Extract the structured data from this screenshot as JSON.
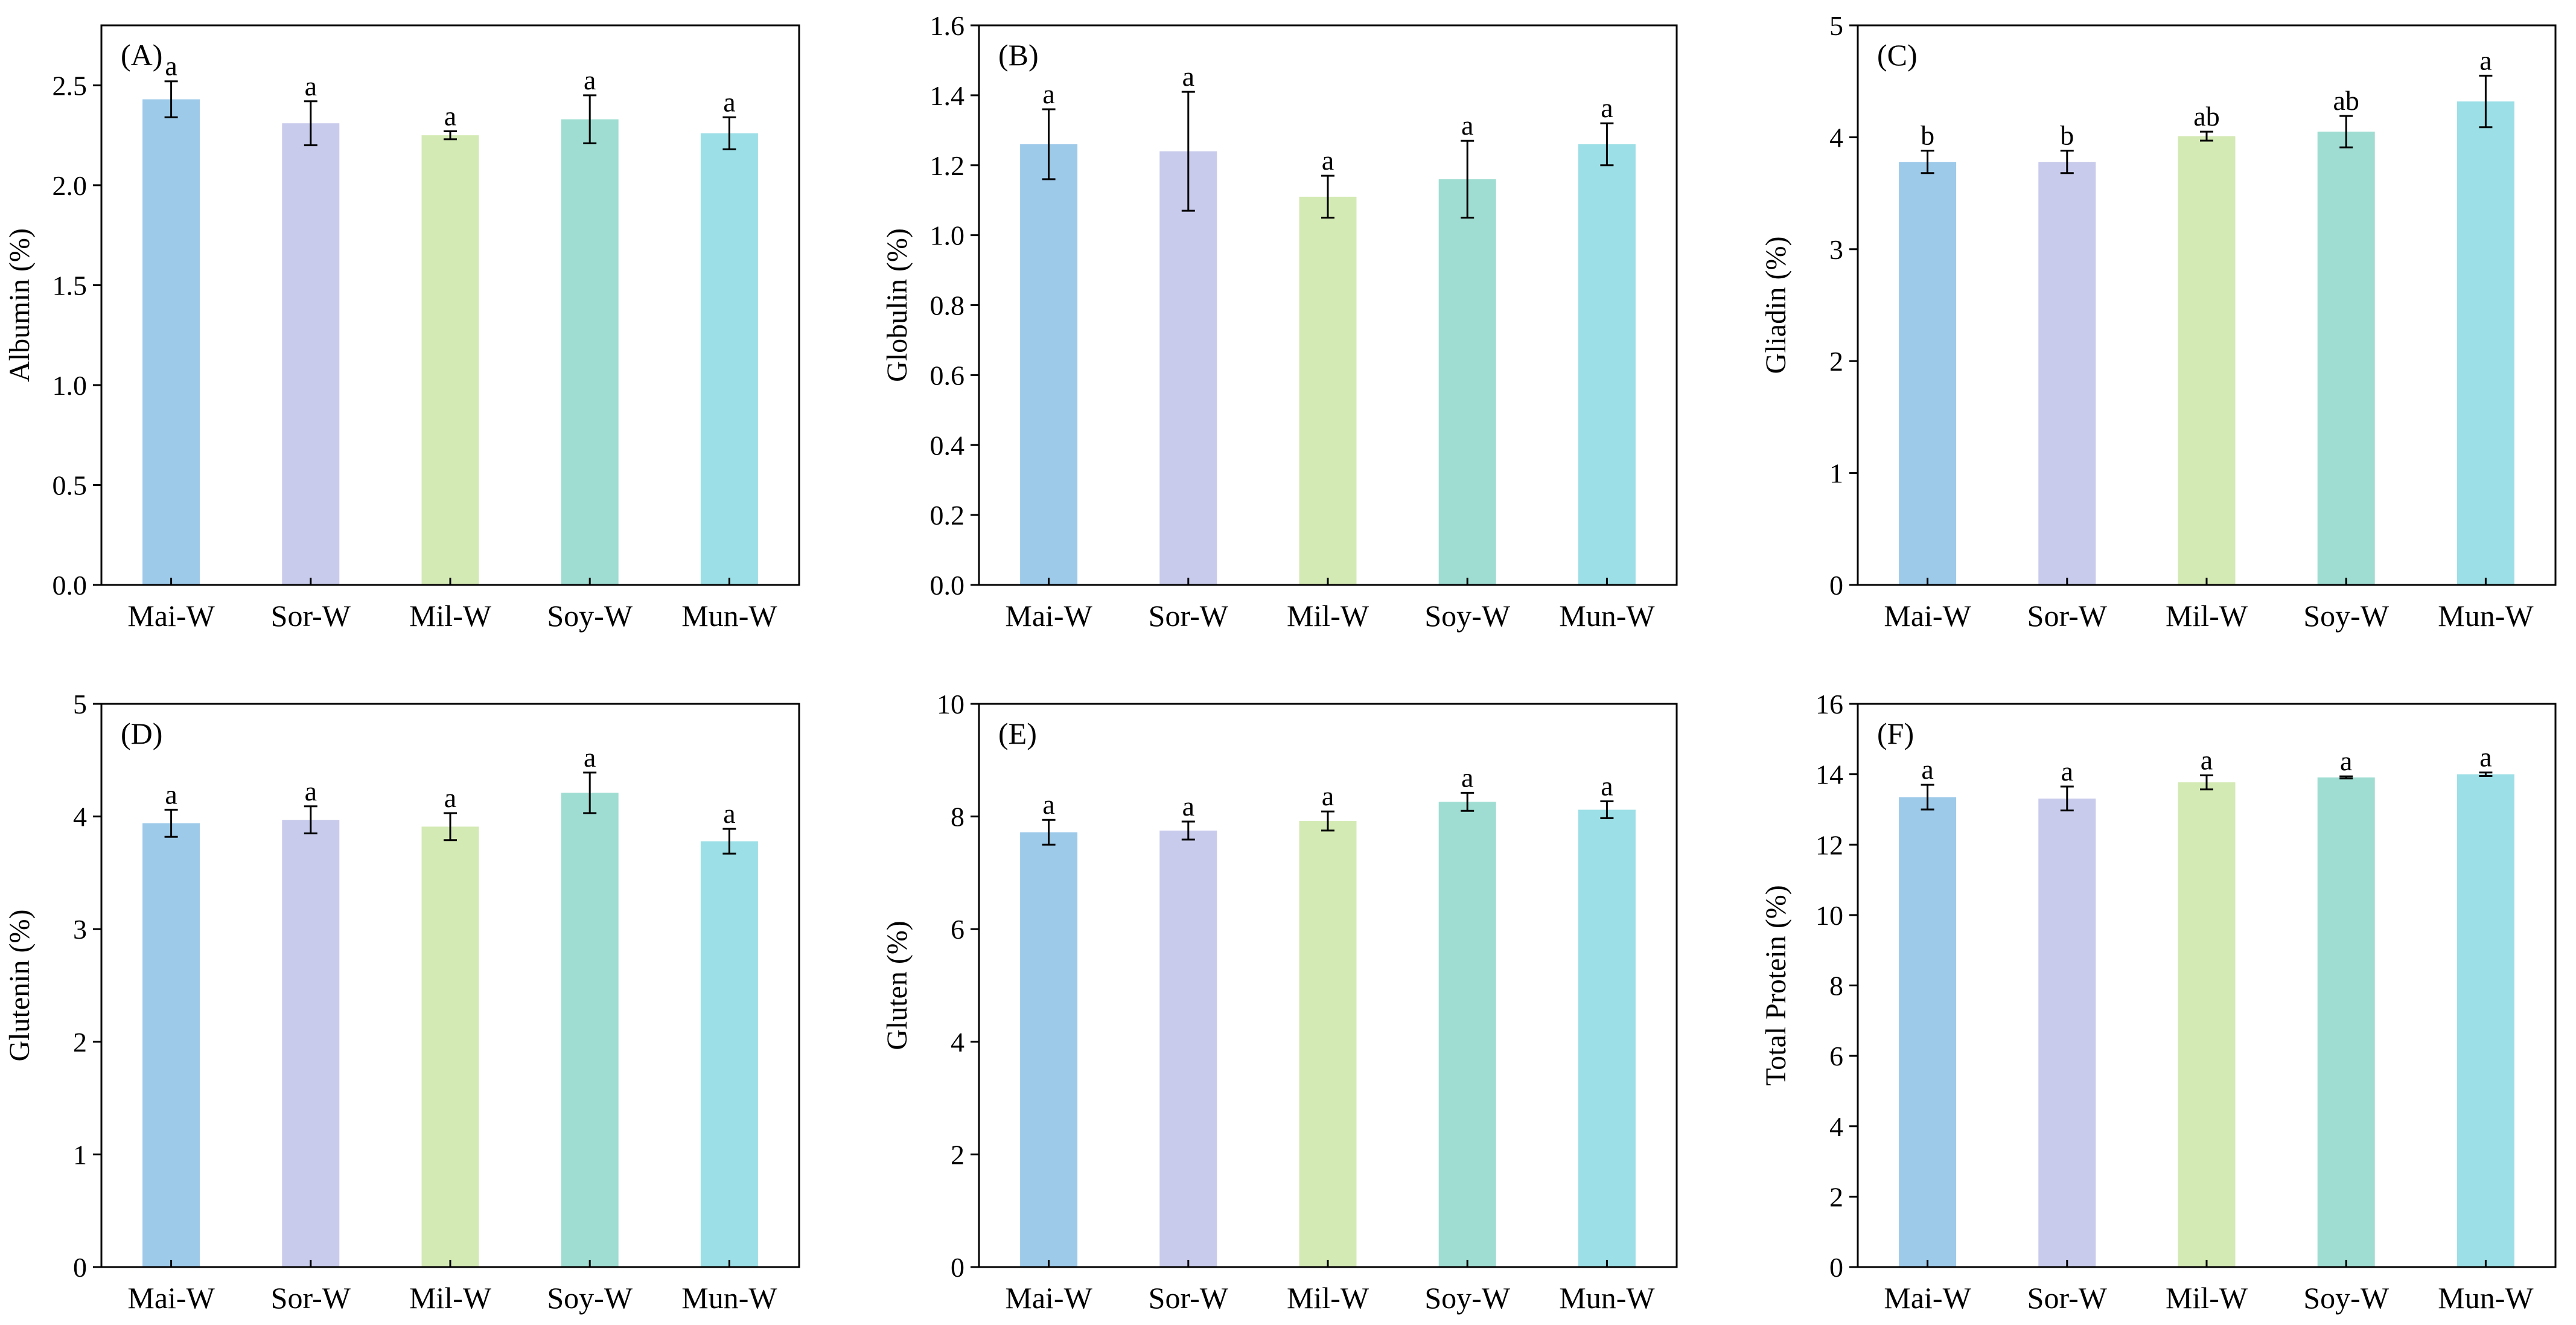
{
  "figure": {
    "categories": [
      "Mai-W",
      "Sor-W",
      "Mil-W",
      "Soy-W",
      "Mun-W"
    ],
    "colors": [
      "#9ECAEA",
      "#C8CBEB",
      "#D4EAB4",
      "#9FDDD2",
      "#9CDFE6"
    ]
  },
  "chart_data": [
    {
      "type": "bar",
      "panel": "(A)",
      "title": "",
      "xlabel": "",
      "ylabel": "Albumin (%)",
      "categories": [
        "Mai-W",
        "Sor-W",
        "Mil-W",
        "Soy-W",
        "Mun-W"
      ],
      "values": [
        2.43,
        2.31,
        2.25,
        2.33,
        2.26
      ],
      "errors": [
        0.09,
        0.11,
        0.02,
        0.12,
        0.08
      ],
      "significance": [
        "a",
        "a",
        "a",
        "a",
        "a"
      ],
      "ylim": [
        0,
        2.8
      ],
      "yticks": [
        0.0,
        0.5,
        1.0,
        1.5,
        2.0,
        2.5
      ],
      "yticklabels": [
        "0.0",
        "0.5",
        "1.0",
        "1.5",
        "2.0",
        "2.5"
      ]
    },
    {
      "type": "bar",
      "panel": "(B)",
      "title": "",
      "xlabel": "",
      "ylabel": "Globulin (%)",
      "categories": [
        "Mai-W",
        "Sor-W",
        "Mil-W",
        "Soy-W",
        "Mun-W"
      ],
      "values": [
        1.26,
        1.24,
        1.11,
        1.16,
        1.26
      ],
      "errors": [
        0.1,
        0.17,
        0.06,
        0.11,
        0.06
      ],
      "significance": [
        "a",
        "a",
        "a",
        "a",
        "a"
      ],
      "ylim": [
        0,
        1.6
      ],
      "yticks": [
        0.0,
        0.2,
        0.4,
        0.6,
        0.8,
        1.0,
        1.2,
        1.4,
        1.6
      ],
      "yticklabels": [
        "0.0",
        "0.2",
        "0.4",
        "0.6",
        "0.8",
        "1.0",
        "1.2",
        "1.4",
        "1.6"
      ]
    },
    {
      "type": "bar",
      "panel": "(C)",
      "title": "",
      "xlabel": "",
      "ylabel": "Gliadin (%)",
      "categories": [
        "Mai-W",
        "Sor-W",
        "Mil-W",
        "Soy-W",
        "Mun-W"
      ],
      "values": [
        3.78,
        3.78,
        4.01,
        4.05,
        4.32
      ],
      "errors": [
        0.1,
        0.1,
        0.04,
        0.14,
        0.23
      ],
      "significance": [
        "b",
        "b",
        "ab",
        "ab",
        "a"
      ],
      "ylim": [
        0,
        5
      ],
      "yticks": [
        0,
        1,
        2,
        3,
        4,
        5
      ],
      "yticklabels": [
        "0",
        "1",
        "2",
        "3",
        "4",
        "5"
      ]
    },
    {
      "type": "bar",
      "panel": "(D)",
      "title": "",
      "xlabel": "",
      "ylabel": "Glutenin (%)",
      "categories": [
        "Mai-W",
        "Sor-W",
        "Mil-W",
        "Soy-W",
        "Mun-W"
      ],
      "values": [
        3.94,
        3.97,
        3.91,
        4.21,
        3.78
      ],
      "errors": [
        0.12,
        0.12,
        0.12,
        0.18,
        0.11
      ],
      "significance": [
        "a",
        "a",
        "a",
        "a",
        "a"
      ],
      "ylim": [
        0,
        5
      ],
      "yticks": [
        0,
        1,
        2,
        3,
        4,
        5
      ],
      "yticklabels": [
        "0",
        "1",
        "2",
        "3",
        "4",
        "5"
      ]
    },
    {
      "type": "bar",
      "panel": "(E)",
      "title": "",
      "xlabel": "",
      "ylabel": "Gluten (%)",
      "categories": [
        "Mai-W",
        "Sor-W",
        "Mil-W",
        "Soy-W",
        "Mun-W"
      ],
      "values": [
        7.72,
        7.75,
        7.92,
        8.26,
        8.12
      ],
      "errors": [
        0.22,
        0.16,
        0.17,
        0.16,
        0.15
      ],
      "significance": [
        "a",
        "a",
        "a",
        "a",
        "a"
      ],
      "ylim": [
        0,
        10
      ],
      "yticks": [
        0,
        2,
        4,
        6,
        8,
        10
      ],
      "yticklabels": [
        "0",
        "2",
        "4",
        "6",
        "8",
        "10"
      ]
    },
    {
      "type": "bar",
      "panel": "(F)",
      "title": "",
      "xlabel": "",
      "ylabel": "Total Protein (%)",
      "categories": [
        "Mai-W",
        "Sor-W",
        "Mil-W",
        "Soy-W",
        "Mun-W"
      ],
      "values": [
        13.35,
        13.31,
        13.77,
        13.91,
        14.0
      ],
      "errors": [
        0.35,
        0.34,
        0.2,
        0.03,
        0.05
      ],
      "significance": [
        "a",
        "a",
        "a",
        "a",
        "a"
      ],
      "ylim": [
        0,
        16
      ],
      "yticks": [
        0,
        2,
        4,
        6,
        8,
        10,
        12,
        14,
        16
      ],
      "yticklabels": [
        "0",
        "2",
        "4",
        "6",
        "8",
        "10",
        "12",
        "14",
        "16"
      ]
    }
  ]
}
